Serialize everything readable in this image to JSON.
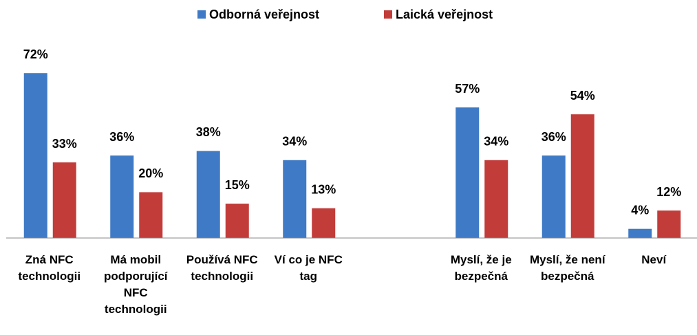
{
  "chart_data": {
    "type": "bar",
    "categories": [
      "Zná NFC technologii",
      "Má mobil podporující NFC technologii",
      "Používá NFC technologii",
      "Ví co je NFC tag",
      null,
      "Myslí, že je bezpečná",
      "Myslí, že není bezpečná",
      "Neví"
    ],
    "series": [
      {
        "name": "Odborná veřejnost",
        "color": "#3f7ac6",
        "values": [
          72,
          36,
          38,
          34,
          null,
          57,
          36,
          4
        ],
        "value_labels": [
          "72%",
          "36%",
          "38%",
          "34%",
          null,
          "57%",
          "36%",
          "4%"
        ]
      },
      {
        "name": "Laická veřejnost",
        "color": "#c23c3a",
        "values": [
          33,
          20,
          15,
          13,
          null,
          34,
          54,
          12
        ],
        "value_labels": [
          "33%",
          "20%",
          "15%",
          "13%",
          null,
          "34%",
          "54%",
          "12%"
        ]
      }
    ],
    "ylim": [
      0,
      100
    ],
    "legend": "top"
  }
}
